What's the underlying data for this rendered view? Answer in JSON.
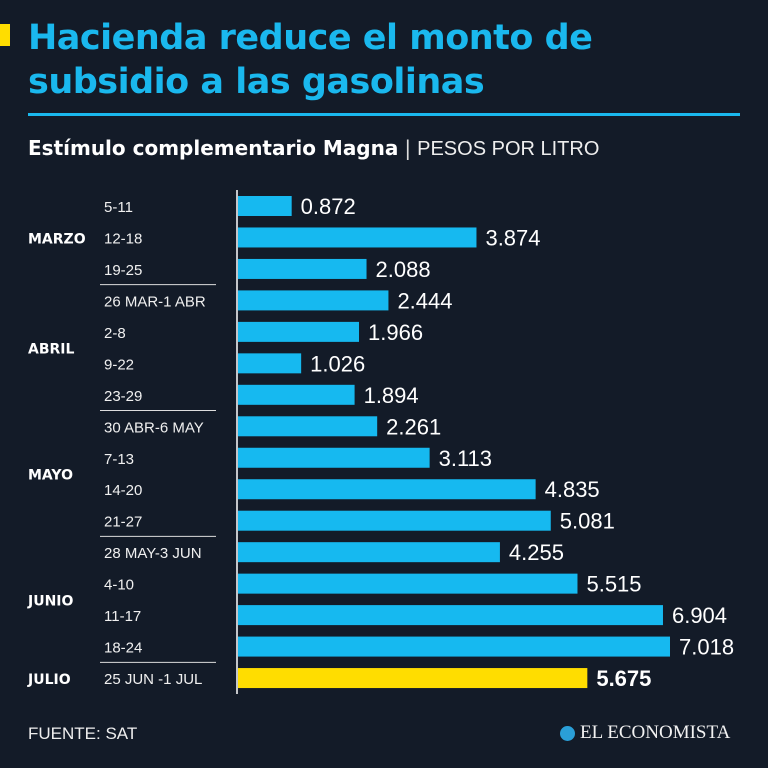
{
  "header": {
    "title": "Hacienda reduce el monto de subsidio a las gasolinas",
    "subtitle_bold": "Estímulo complementario Magna",
    "separator": "|",
    "unit": "PESOS POR LITRO"
  },
  "footer": {
    "source": "FUENTE: SAT",
    "logo": "EL ECONOMISTA"
  },
  "colors": {
    "background": "#131b28",
    "bar": "#16b9f0",
    "highlight": "#ffdd00",
    "title": "#1ab8ee"
  },
  "chart_data": {
    "type": "bar",
    "orientation": "horizontal",
    "title": "Estímulo complementario Magna",
    "unit": "PESOS POR LITRO",
    "categories": [
      "5-11",
      "12-18",
      "19-25",
      "26 MAR-1 ABR",
      "2-8",
      "9-22",
      "23-29",
      "30 ABR-6 MAY",
      "7-13",
      "14-20",
      "21-27",
      "28 MAY-3 JUN",
      "4-10",
      "11-17",
      "18-24",
      "25 JUN -1 JUL"
    ],
    "values": [
      0.872,
      3.874,
      2.088,
      2.444,
      1.966,
      1.026,
      1.894,
      2.261,
      3.113,
      4.835,
      5.081,
      4.255,
      5.515,
      6.904,
      7.018,
      5.675
    ],
    "value_labels": [
      "0.872",
      "3.874",
      "2.088",
      "2.444",
      "1.966",
      "1.026",
      "1.894",
      "2.261",
      "3.113",
      "4.835",
      "5.081",
      "4.255",
      "5.515",
      "6.904",
      "7.018",
      "5.675"
    ],
    "highlight_index": 15,
    "groups": [
      {
        "label": "MARZO",
        "start": 0,
        "end": 2
      },
      {
        "label": "ABRIL",
        "start": 3,
        "end": 6
      },
      {
        "label": "MAYO",
        "start": 7,
        "end": 10
      },
      {
        "label": "JUNIO",
        "start": 11,
        "end": 14
      },
      {
        "label": "JULIO",
        "start": 15,
        "end": 15
      }
    ],
    "xlim": [
      0,
      7.018
    ]
  }
}
